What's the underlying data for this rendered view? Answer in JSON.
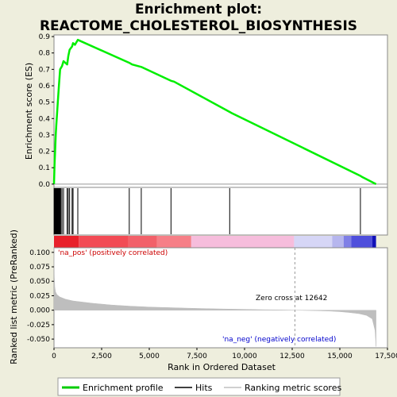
{
  "title_line1": "Enrichment plot:",
  "title_line2": "REACTOME_CHOLESTEROL_BIOSYNTHESIS",
  "top_panel": {
    "ylabel": "Enrichment score (ES)",
    "yticks": [
      "0.0",
      "0.1",
      "0.2",
      "0.3",
      "0.4",
      "0.5",
      "0.6",
      "0.7",
      "0.8",
      "0.9"
    ]
  },
  "bottom_panel": {
    "ylabel": "Ranked list metric (PreRanked)",
    "yticks": [
      "0.100",
      "0.075",
      "0.050",
      "0.025",
      "0.000",
      "-0.025",
      "-0.050"
    ],
    "pos_label": "'na_pos' (positively correlated)",
    "neg_label": "'na_neg' (negatively correlated)",
    "zero_cross_label": "Zero cross at 12642"
  },
  "xlabel": "Rank in Ordered Dataset",
  "xticks": [
    "0",
    "2,500",
    "5,000",
    "7,500",
    "10,000",
    "12,500",
    "15,000",
    "17,500"
  ],
  "legend": [
    {
      "label": "Enrichment profile",
      "color": "#00cc00"
    },
    {
      "label": "Hits",
      "color": "#000000"
    },
    {
      "label": "Ranking metric scores",
      "color": "#c0c0c0"
    }
  ],
  "colors": {
    "profile": "#00ee00",
    "hits": "#000000",
    "metric_fill": "#bebebe",
    "panel_bg": "#ffffff",
    "frame_bg": "#eeeedd",
    "pos_text": "#cc0000",
    "neg_text": "#0000cc"
  },
  "chart_data": {
    "type": "line",
    "x_range": [
      0,
      17500
    ],
    "n_genes": 16900,
    "zero_cross": 12642,
    "es_ylim": [
      -0.02,
      0.91
    ],
    "metric_ylim": [
      -0.065,
      0.108
    ],
    "hits": [
      8,
      20,
      35,
      50,
      65,
      80,
      100,
      120,
      140,
      160,
      180,
      200,
      230,
      260,
      290,
      320,
      360,
      420,
      500,
      690,
      750,
      820,
      950,
      1000,
      1250,
      3950,
      4580,
      6140,
      9220,
      16080
    ],
    "es_profile": {
      "x": [
        0,
        30,
        60,
        90,
        120,
        150,
        200,
        260,
        320,
        420,
        500,
        690,
        750,
        820,
        950,
        1000,
        1100,
        1250,
        3950,
        4100,
        4580,
        6140,
        6300,
        9220,
        9300,
        16080,
        16150,
        16900
      ],
      "y": [
        0.0,
        0.12,
        0.2,
        0.3,
        0.36,
        0.41,
        0.5,
        0.6,
        0.7,
        0.72,
        0.75,
        0.73,
        0.78,
        0.82,
        0.84,
        0.86,
        0.85,
        0.88,
        0.74,
        0.73,
        0.715,
        0.63,
        0.625,
        0.44,
        0.435,
        0.05,
        0.045,
        0.0
      ]
    },
    "metric_profile": {
      "x": [
        0,
        15,
        40,
        80,
        150,
        300,
        600,
        1000,
        2000,
        3000,
        4000,
        5000,
        6000,
        7000,
        8000,
        9000,
        10000,
        11000,
        12000,
        12642,
        13500,
        14500,
        15000,
        15500,
        16000,
        16400,
        16700,
        16850,
        16900
      ],
      "y": [
        0.108,
        0.06,
        0.04,
        0.032,
        0.027,
        0.023,
        0.019,
        0.016,
        0.012,
        0.009,
        0.007,
        0.0055,
        0.0045,
        0.0035,
        0.0027,
        0.002,
        0.0014,
        0.0008,
        0.0003,
        0.0,
        -0.0006,
        -0.0015,
        -0.0025,
        -0.004,
        -0.006,
        -0.009,
        -0.015,
        -0.035,
        -0.063
      ]
    },
    "color_bar": [
      {
        "from": 0,
        "to": 1300,
        "color": "#e8202a"
      },
      {
        "from": 1300,
        "to": 3900,
        "color": "#f24b55"
      },
      {
        "from": 3900,
        "to": 5400,
        "color": "#f2616a"
      },
      {
        "from": 5400,
        "to": 7200,
        "color": "#f67f87"
      },
      {
        "from": 7200,
        "to": 12600,
        "color": "#f6bddc"
      },
      {
        "from": 12600,
        "to": 14600,
        "color": "#d6d6f6"
      },
      {
        "from": 14600,
        "to": 15200,
        "color": "#b6b6ee"
      },
      {
        "from": 15200,
        "to": 15600,
        "color": "#7f7fe6"
      },
      {
        "from": 15600,
        "to": 16700,
        "color": "#4f4fdc"
      },
      {
        "from": 16700,
        "to": 16900,
        "color": "#1212b8"
      }
    ]
  }
}
